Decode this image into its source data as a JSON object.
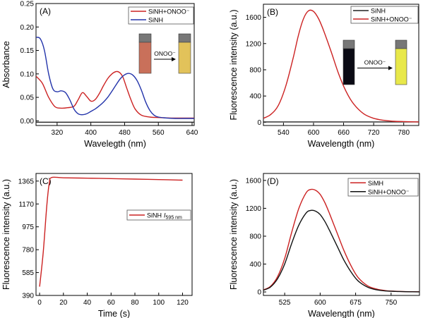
{
  "chart_data": [
    {
      "panel_label": "(A)",
      "type": "line",
      "xlabel": "Wavelegth (nm)",
      "ylabel": "Absorbance",
      "xlim": [
        270,
        645
      ],
      "ylim": [
        -0.01,
        0.25
      ],
      "xticks": [
        320,
        400,
        480,
        560,
        640
      ],
      "yticks": [
        0.0,
        0.05,
        0.1,
        0.15,
        0.2,
        0.25
      ],
      "ytick_labels": [
        "0.00",
        "0.05",
        "0.10",
        "0.15",
        "0.20",
        "0.25"
      ],
      "legend_position": "top-right",
      "inset": {
        "label": "ONOO⁻",
        "from_color": "#c9705a",
        "to_color": "#e2c25a"
      },
      "series": [
        {
          "name": "SiNH+ONOO⁻",
          "color": "#cc2222",
          "x": [
            270,
            285,
            300,
            315,
            330,
            345,
            360,
            370,
            380,
            390,
            400,
            410,
            420,
            430,
            440,
            450,
            460,
            468,
            476,
            485,
            495,
            505,
            520,
            540,
            560,
            590,
            620,
            645
          ],
          "y": [
            0.095,
            0.08,
            0.05,
            0.03,
            0.027,
            0.028,
            0.031,
            0.045,
            0.06,
            0.052,
            0.042,
            0.045,
            0.058,
            0.075,
            0.09,
            0.1,
            0.105,
            0.103,
            0.093,
            0.07,
            0.045,
            0.025,
            0.012,
            0.008,
            0.007,
            0.006,
            0.006,
            0.006
          ]
        },
        {
          "name": "SiNH",
          "color": "#2233aa",
          "x": [
            270,
            280,
            290,
            300,
            310,
            320,
            330,
            340,
            350,
            360,
            370,
            380,
            390,
            400,
            410,
            420,
            430,
            440,
            450,
            460,
            470,
            480,
            490,
            500,
            510,
            520,
            530,
            540,
            550,
            560,
            580,
            600,
            620,
            645
          ],
          "y": [
            0.178,
            0.175,
            0.15,
            0.1,
            0.068,
            0.062,
            0.064,
            0.06,
            0.045,
            0.025,
            0.015,
            0.013,
            0.015,
            0.02,
            0.025,
            0.032,
            0.04,
            0.05,
            0.063,
            0.077,
            0.09,
            0.098,
            0.101,
            0.097,
            0.085,
            0.065,
            0.04,
            0.022,
            0.012,
            0.008,
            0.006,
            0.005,
            0.005,
            0.005
          ]
        },
        {
          "name": "",
          "color": "#222222",
          "x": [
            270,
            645
          ],
          "y": [
            -0.003,
            -0.003
          ]
        }
      ]
    },
    {
      "panel_label": "(B)",
      "type": "line",
      "xlabel": "Wavelength (nm)",
      "ylabel": "Fluorescence intensity (a.u.)",
      "xlim": [
        500,
        810
      ],
      "ylim": [
        -50,
        1800
      ],
      "xticks": [
        540,
        600,
        660,
        720,
        780
      ],
      "yticks": [
        0,
        400,
        800,
        1200,
        1600
      ],
      "legend_position": "top-right",
      "inset": {
        "label": "ONOO⁻",
        "from_color": "#0a0a14",
        "to_color": "#e8e84a"
      },
      "series": [
        {
          "name": "SiNH",
          "color": "#222222",
          "x": [
            500,
            600,
            700,
            810
          ],
          "y": [
            5,
            5,
            5,
            5
          ]
        },
        {
          "name": "SiNH+ONOO⁻",
          "color": "#cc2222",
          "x": [
            500,
            515,
            530,
            545,
            560,
            570,
            580,
            590,
            600,
            610,
            620,
            635,
            650,
            665,
            680,
            700,
            720,
            740,
            760,
            780,
            810
          ],
          "y": [
            60,
            120,
            260,
            560,
            1000,
            1330,
            1580,
            1700,
            1690,
            1580,
            1400,
            1080,
            740,
            470,
            280,
            130,
            60,
            30,
            15,
            10,
            5
          ]
        }
      ]
    },
    {
      "panel_label": "(C)",
      "type": "line",
      "xlabel": "Time (s)",
      "ylabel": "Fluorescence intensity (a.u.)",
      "xlim": [
        -3,
        128
      ],
      "ylim": [
        390,
        1430
      ],
      "xticks": [
        0,
        20,
        40,
        60,
        80,
        100,
        120
      ],
      "yticks": [
        390,
        585,
        780,
        975,
        1170,
        1365
      ],
      "legend_position": "right",
      "series": [
        {
          "name": "SiNH",
          "legend_suffix": "595 nm",
          "color": "#cc2222",
          "x": [
            0,
            3,
            6,
            8,
            10,
            20,
            40,
            60,
            80,
            100,
            120
          ],
          "y": [
            465,
            750,
            1150,
            1340,
            1395,
            1393,
            1390,
            1386,
            1382,
            1378,
            1373
          ]
        }
      ]
    },
    {
      "panel_label": "(D)",
      "type": "line",
      "xlabel": "Wavelength (nm)",
      "ylabel": "Fluorescence intensity (a.u.)",
      "xlim": [
        480,
        810
      ],
      "ylim": [
        -50,
        1700
      ],
      "xticks": [
        525,
        600,
        675,
        750
      ],
      "yticks": [
        0,
        400,
        800,
        1200,
        1600
      ],
      "legend_position": "top-right",
      "series": [
        {
          "name": "SiMH",
          "color": "#cc2222",
          "x": [
            480,
            495,
            510,
            525,
            540,
            555,
            570,
            580,
            590,
            600,
            610,
            620,
            635,
            650,
            665,
            680,
            700,
            720,
            740,
            760,
            780,
            810
          ],
          "y": [
            30,
            80,
            220,
            480,
            860,
            1200,
            1420,
            1470,
            1460,
            1400,
            1280,
            1120,
            860,
            600,
            380,
            210,
            90,
            40,
            18,
            10,
            5,
            3
          ]
        },
        {
          "name": "SiNH+ONOO⁻",
          "color": "#111111",
          "x": [
            480,
            495,
            510,
            525,
            540,
            555,
            570,
            580,
            590,
            600,
            610,
            620,
            635,
            650,
            665,
            680,
            700,
            720,
            740,
            760,
            780,
            810
          ],
          "y": [
            25,
            70,
            190,
            400,
            700,
            960,
            1130,
            1170,
            1160,
            1110,
            1010,
            880,
            670,
            460,
            290,
            160,
            70,
            30,
            14,
            8,
            4,
            2
          ]
        }
      ]
    }
  ]
}
